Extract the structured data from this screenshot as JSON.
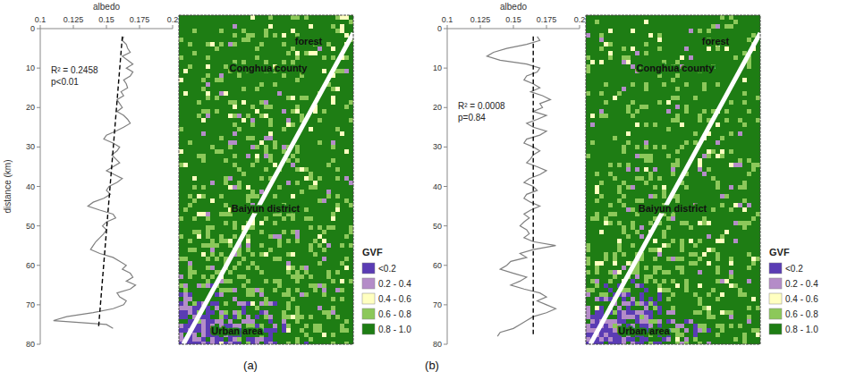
{
  "chart_data": [
    {
      "type": "line",
      "panel": "(a)",
      "orientation": "horizontal",
      "grid": false,
      "x_label": "distance (km)",
      "y_label": "albedo",
      "xlim": [
        0,
        80
      ],
      "xticks": [
        0,
        10,
        20,
        30,
        40,
        50,
        60,
        70,
        80
      ],
      "ylim": [
        0.1,
        0.2
      ],
      "yticks": [
        0.1,
        0.125,
        0.15,
        0.175,
        0.2
      ],
      "annotations": [
        "R² = 0.2458",
        "p<0.01"
      ],
      "x": [
        2,
        3,
        4,
        5,
        6,
        7,
        8,
        9,
        10,
        11,
        12,
        13,
        14,
        15,
        16,
        17,
        18,
        19,
        20,
        21,
        22,
        23,
        24,
        25,
        26,
        27,
        28,
        29,
        30,
        31,
        32,
        33,
        34,
        35,
        36,
        37,
        38,
        39,
        40,
        41,
        42,
        43,
        44,
        45,
        46,
        47,
        48,
        49,
        50,
        51,
        52,
        53,
        54,
        55,
        56,
        57,
        58,
        59,
        60,
        61,
        62,
        63,
        64,
        65,
        66,
        67,
        68,
        69,
        70,
        71,
        72,
        73,
        74,
        75,
        76
      ],
      "series": [
        {
          "color": "#808080",
          "line_style": "solid",
          "values": [
            0.163,
            0.162,
            0.165,
            0.166,
            0.168,
            0.162,
            0.166,
            0.17,
            0.165,
            0.17,
            0.168,
            0.163,
            0.165,
            0.166,
            0.161,
            0.163,
            0.158,
            0.16,
            0.162,
            0.158,
            0.163,
            0.166,
            0.168,
            0.163,
            0.157,
            0.15,
            0.148,
            0.155,
            0.16,
            0.158,
            0.154,
            0.157,
            0.16,
            0.155,
            0.15,
            0.156,
            0.162,
            0.158,
            0.152,
            0.15,
            0.153,
            0.148,
            0.14,
            0.136,
            0.145,
            0.155,
            0.157,
            0.15,
            0.147,
            0.15,
            0.148,
            0.145,
            0.142,
            0.14,
            0.138,
            0.145,
            0.155,
            0.16,
            0.165,
            0.162,
            0.168,
            0.17,
            0.165,
            0.172,
            0.168,
            0.158,
            0.16,
            0.165,
            0.163,
            0.155,
            0.14,
            0.12,
            0.11,
            0.15,
            0.155
          ]
        },
        {
          "color": "#000000",
          "line_style": "dashed",
          "x": [
            2,
            76
          ],
          "values": [
            0.162,
            0.144
          ]
        }
      ],
      "map": {
        "labels": [
          "forest",
          "Conghua county",
          "Baiyun district",
          "Urban area"
        ],
        "legend_title": "GVF",
        "classes": [
          {
            "label": "<0.2",
            "color": "#5a3cb4"
          },
          {
            "label": "0.2 - 0.4",
            "color": "#b48cc8"
          },
          {
            "label": "0.4 - 0.6",
            "color": "#ffffc0"
          },
          {
            "label": "0.6 - 0.8",
            "color": "#8cc85a"
          },
          {
            "label": "0.8 - 1.0",
            "color": "#1e7d14"
          }
        ]
      }
    },
    {
      "type": "line",
      "panel": "(b)",
      "orientation": "horizontal",
      "grid": false,
      "y_label": "albedo",
      "xlim": [
        0,
        80
      ],
      "xticks": [
        0,
        10,
        20,
        30,
        40,
        50,
        60,
        70,
        80
      ],
      "ylim": [
        0.1,
        0.2
      ],
      "yticks": [
        0.1,
        0.125,
        0.15,
        0.175,
        0.2
      ],
      "annotations": [
        "R² = 0.0008",
        "p=0.84"
      ],
      "x": [
        2,
        3,
        4,
        5,
        6,
        7,
        8,
        9,
        10,
        11,
        12,
        13,
        14,
        15,
        16,
        17,
        18,
        19,
        20,
        21,
        22,
        23,
        24,
        25,
        26,
        27,
        28,
        29,
        30,
        31,
        32,
        33,
        34,
        35,
        36,
        37,
        38,
        39,
        40,
        41,
        42,
        43,
        44,
        45,
        46,
        47,
        48,
        49,
        50,
        51,
        52,
        53,
        54,
        55,
        56,
        57,
        58,
        59,
        60,
        61,
        62,
        63,
        64,
        65,
        66,
        67,
        68,
        69,
        70,
        71,
        72,
        73,
        74,
        75,
        76,
        77,
        78
      ],
      "series": [
        {
          "color": "#808080",
          "line_style": "solid",
          "values": [
            0.168,
            0.17,
            0.16,
            0.145,
            0.135,
            0.13,
            0.14,
            0.16,
            0.17,
            0.168,
            0.16,
            0.158,
            0.165,
            0.17,
            0.163,
            0.172,
            0.178,
            0.17,
            0.172,
            0.165,
            0.175,
            0.168,
            0.16,
            0.165,
            0.175,
            0.17,
            0.16,
            0.158,
            0.165,
            0.17,
            0.165,
            0.163,
            0.16,
            0.168,
            0.175,
            0.17,
            0.162,
            0.158,
            0.165,
            0.168,
            0.16,
            0.158,
            0.163,
            0.17,
            0.163,
            0.158,
            0.162,
            0.158,
            0.155,
            0.16,
            0.162,
            0.158,
            0.165,
            0.182,
            0.165,
            0.155,
            0.16,
            0.148,
            0.145,
            0.14,
            0.15,
            0.16,
            0.155,
            0.148,
            0.158,
            0.17,
            0.175,
            0.168,
            0.175,
            0.182,
            0.175,
            0.165,
            0.16,
            0.155,
            0.15,
            0.14,
            0.138
          ]
        },
        {
          "color": "#000000",
          "line_style": "dashed",
          "x": [
            2,
            78
          ],
          "values": [
            0.165,
            0.165
          ]
        }
      ],
      "map": {
        "labels": [
          "forest",
          "Conghua county",
          "Baiyun district",
          "Urban area"
        ],
        "legend_title": "GVF",
        "classes": [
          {
            "label": "<0.2",
            "color": "#5a3cb4"
          },
          {
            "label": "0.2 - 0.4",
            "color": "#b48cc8"
          },
          {
            "label": "0.4 - 0.6",
            "color": "#ffffc0"
          },
          {
            "label": "0.6 - 0.8",
            "color": "#8cc85a"
          },
          {
            "label": "0.8 - 1.0",
            "color": "#1e7d14"
          }
        ]
      }
    }
  ]
}
